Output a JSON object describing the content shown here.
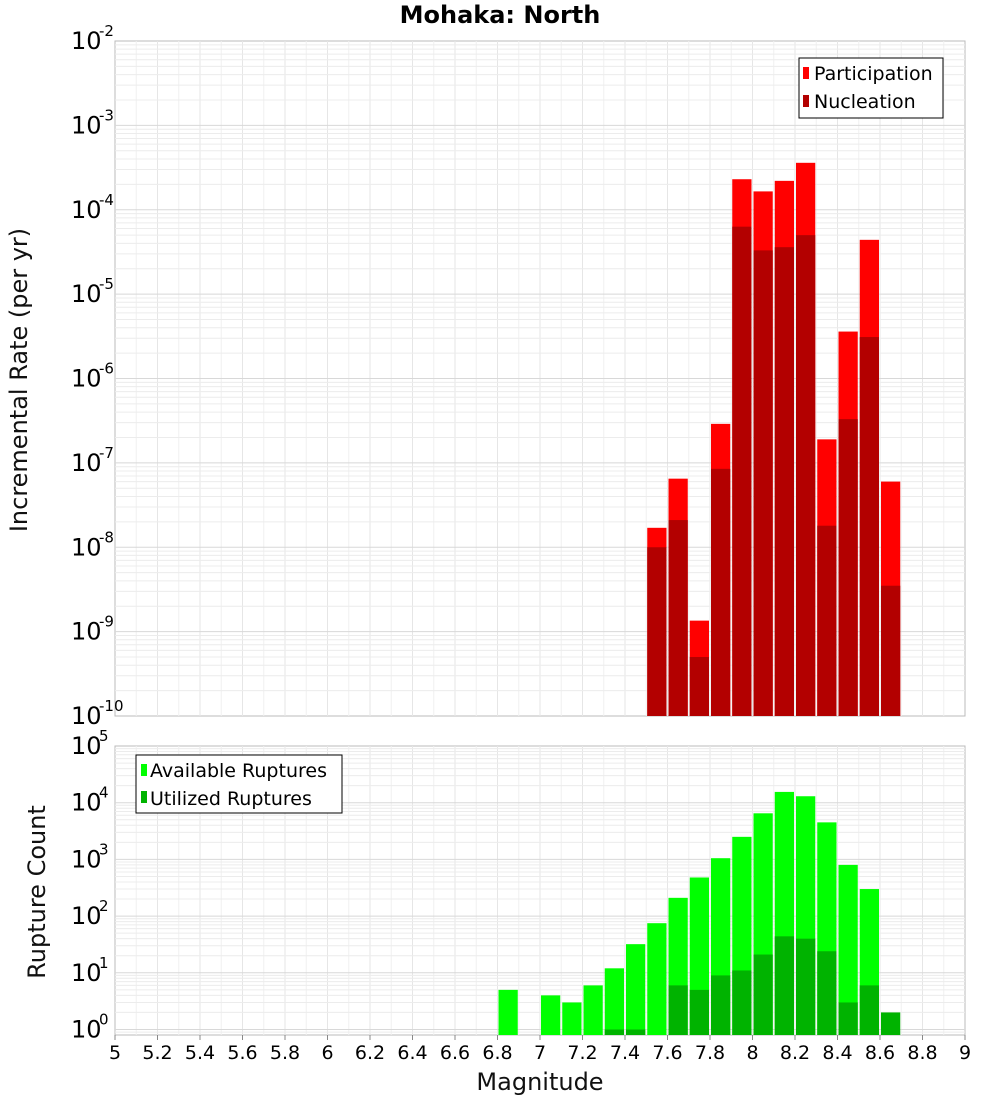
{
  "title": "Mohaka: North",
  "colors": {
    "participation": "#ff0000",
    "nucleation": "#b30000",
    "available": "#00ff00",
    "utilized": "#00b300"
  },
  "chart_data": [
    {
      "type": "bar",
      "panel": "top",
      "ylabel": "Incremental Rate (per yr)",
      "xlabel": "",
      "yscale": "log",
      "ylim": [
        1e-10,
        0.01
      ],
      "y_ticks": [
        {
          "base": "10",
          "exp": "-10",
          "value": 1e-10
        },
        {
          "base": "10",
          "exp": "-9",
          "value": 1e-09
        },
        {
          "base": "10",
          "exp": "-8",
          "value": 1e-08
        },
        {
          "base": "10",
          "exp": "-7",
          "value": 1e-07
        },
        {
          "base": "10",
          "exp": "-6",
          "value": 1e-06
        },
        {
          "base": "10",
          "exp": "-5",
          "value": 1e-05
        },
        {
          "base": "10",
          "exp": "-4",
          "value": 0.0001
        },
        {
          "base": "10",
          "exp": "-3",
          "value": 0.001
        },
        {
          "base": "10",
          "exp": "-2",
          "value": 0.01
        }
      ],
      "xlim": [
        5,
        9
      ],
      "grid": true,
      "legend": "top-right",
      "x": [
        7.55,
        7.65,
        7.75,
        7.85,
        7.95,
        8.05,
        8.15,
        8.25,
        8.35,
        8.45,
        8.55,
        8.65
      ],
      "series": [
        {
          "name": "Participation",
          "values": [
            1.7e-08,
            6.5e-08,
            1.35e-09,
            2.9e-07,
            0.00023,
            0.000165,
            0.00022,
            0.00036,
            1.9e-07,
            3.6e-06,
            4.4e-05,
            6e-08
          ]
        },
        {
          "name": "Nucleation",
          "values": [
            1e-08,
            2.1e-08,
            5e-10,
            8.5e-08,
            6.3e-05,
            3.3e-05,
            3.6e-05,
            5e-05,
            1.8e-08,
            3.3e-07,
            3.1e-06,
            3.5e-09
          ]
        }
      ]
    },
    {
      "type": "bar",
      "panel": "bottom",
      "ylabel": "Rupture Count",
      "xlabel": "Magnitude",
      "yscale": "log",
      "ylim": [
        0.8,
        100000
      ],
      "y_ticks": [
        {
          "base": "10",
          "exp": "0",
          "value": 1
        },
        {
          "base": "10",
          "exp": "1",
          "value": 10
        },
        {
          "base": "10",
          "exp": "2",
          "value": 100
        },
        {
          "base": "10",
          "exp": "3",
          "value": 1000
        },
        {
          "base": "10",
          "exp": "4",
          "value": 10000
        },
        {
          "base": "10",
          "exp": "5",
          "value": 100000
        }
      ],
      "xlim": [
        5,
        9
      ],
      "x_ticks": [
        "5",
        "5.2",
        "5.4",
        "5.6",
        "5.8",
        "6",
        "6.2",
        "6.4",
        "6.6",
        "6.8",
        "7",
        "7.2",
        "7.4",
        "7.6",
        "7.8",
        "8",
        "8.2",
        "8.4",
        "8.6",
        "8.8",
        "9"
      ],
      "grid": true,
      "legend": "top-left",
      "x": [
        6.85,
        7.05,
        7.15,
        7.25,
        7.35,
        7.45,
        7.55,
        7.65,
        7.75,
        7.85,
        7.95,
        8.05,
        8.15,
        8.25,
        8.35,
        8.45,
        8.55,
        8.65
      ],
      "series": [
        {
          "name": "Available Ruptures",
          "values": [
            5,
            4,
            3,
            6,
            12,
            32,
            75,
            210,
            480,
            1050,
            2500,
            6500,
            15500,
            13000,
            4500,
            800,
            300,
            0
          ]
        },
        {
          "name": "Utilized Ruptures",
          "values": [
            0,
            0,
            0,
            0,
            1,
            1,
            0,
            6,
            5,
            9,
            11,
            21,
            44,
            40,
            24,
            3,
            6,
            2
          ]
        }
      ]
    }
  ]
}
